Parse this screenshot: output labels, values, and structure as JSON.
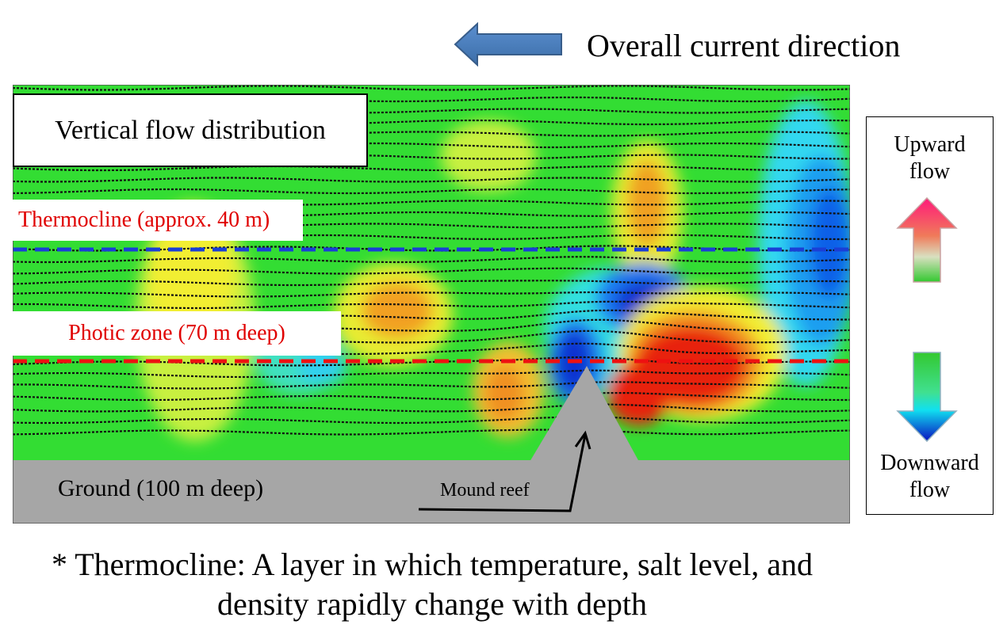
{
  "header": {
    "current_direction_label": "Overall current direction",
    "direction_arrow_icon": "left-arrow-icon",
    "arrow_color": "#4f81bd"
  },
  "diagram": {
    "title": "Vertical flow distribution",
    "thermocline_label": "Thermocline (approx. 40 m)",
    "photic_zone_label": "Photic zone (70 m deep)",
    "ground_label": "Ground (100 m deep)",
    "mound_label": "Mound reef",
    "colors": {
      "background_green": "#33dd33",
      "thermocline_line": "#1a3fd6",
      "photic_line": "#ee1111",
      "ground": "#a6a6a6",
      "label_red": "#e00000"
    }
  },
  "legend": {
    "upward": "Upward flow",
    "downward": "Downward flow",
    "up_arrow_icon": "up-arrow-icon",
    "down_arrow_icon": "down-arrow-icon"
  },
  "footnote": {
    "line1_term": "Thermocline",
    "line1_rest": ": A layer in which temperature, salt level, and",
    "line2": "density rapidly change with depth",
    "marker": "*"
  }
}
